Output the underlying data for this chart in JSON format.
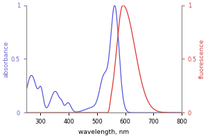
{
  "xlabel": "wavelength, nm",
  "ylabel_left": "absorbance",
  "ylabel_right": "fluorescence",
  "xmin": 250,
  "xmax": 800,
  "ymin": 0,
  "ymax": 1.0,
  "blue_color": "#5555dd",
  "red_color": "#dd3333",
  "spine_color": "#888888",
  "label_color_blue": "#6666cc",
  "label_color_red": "#cc4444",
  "excitation_peak": 563,
  "emission_peak": 592,
  "xticks": [
    300,
    400,
    500,
    600,
    700,
    800
  ],
  "yticks": [
    0,
    0.5,
    1.0
  ]
}
